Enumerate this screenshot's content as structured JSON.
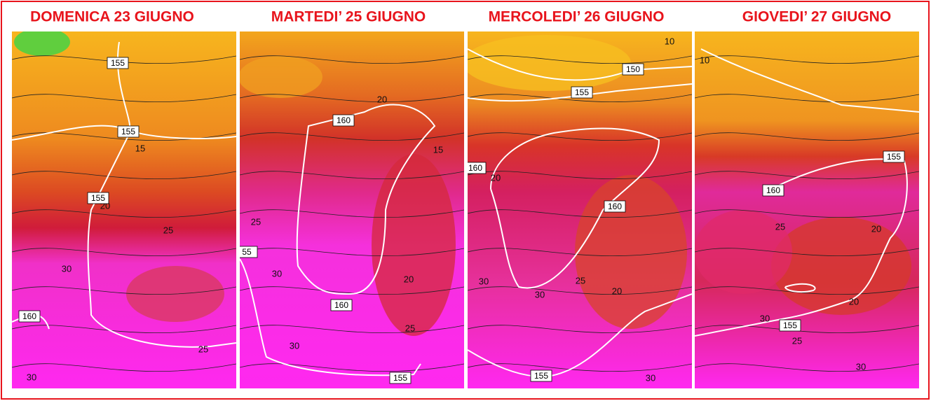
{
  "panels": [
    {
      "title": "DOMENICA 23 GIUGNO",
      "boxed_labels": [
        "155",
        "155",
        "155",
        "160"
      ],
      "contour_labels": [
        "15",
        "20",
        "25",
        "30",
        "25",
        "30"
      ]
    },
    {
      "title": "MARTEDI’ 25 GIUGNO",
      "boxed_labels": [
        "160",
        "160",
        "155",
        "55"
      ],
      "contour_labels": [
        "20",
        "15",
        "25",
        "30",
        "25",
        "30",
        "20"
      ]
    },
    {
      "title": "MERCOLEDI’ 26 GIUGNO",
      "boxed_labels": [
        "150",
        "155",
        "160",
        "160",
        "155"
      ],
      "contour_labels": [
        "20",
        "25",
        "30",
        "30",
        "20",
        "30",
        "10"
      ]
    },
    {
      "title": "GIOVEDI’ 27 GIUGNO",
      "boxed_labels": [
        "155",
        "160",
        "155"
      ],
      "contour_labels": [
        "10",
        "25",
        "20",
        "30",
        "20",
        "25",
        "30"
      ]
    }
  ]
}
